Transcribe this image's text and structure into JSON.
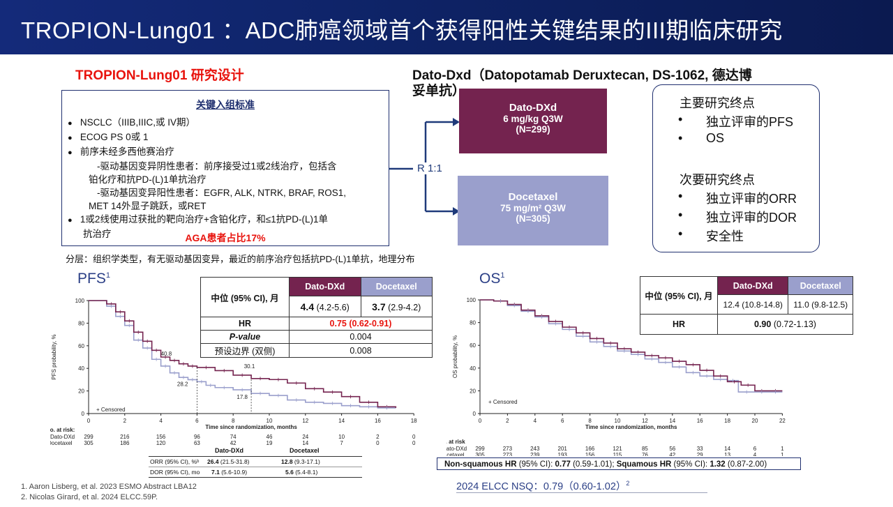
{
  "header": {
    "title": "TROPION-Lung01 ：ADC肺癌领域首个获得阳性关键结果的III期临床研究"
  },
  "design": {
    "title": "TROPION-Lung01 研究设计",
    "drug_title_line1": "Dato-Dxd（Datopotamab Deruxtecan, DS-1062, 德达博",
    "drug_title_line2": "妥单抗）",
    "criteria_header": "关键入组标准",
    "criteria": {
      "b1": "NSCLC（IIIB,IIIC,或 IV期）",
      "b2": "ECOG PS 0或 1",
      "b3": "前序未经多西他赛治疗",
      "b3_sub1a": "-驱动基因变异阴性患者：前序接受过1或2线治疗，包括含",
      "b3_sub1b": "铂化疗和抗PD-(L)1单抗治疗",
      "b3_sub2a": "-驱动基因变异阳性患者：EGFR, ALK, NTRK, BRAF, ROS1,",
      "b3_sub2b": "MET 14外显子跳跃，或RET",
      "b4a": "1或2线使用过获批的靶向治疗+含铂化疗，和≤1抗PD-(L)1单",
      "b4b": "抗治疗",
      "aga": "AGA患者占比17%"
    },
    "stratification": "分层：组织学类型，有无驱动基因变异，最近的前序治疗包括抗PD-(L)1单抗，地理分布",
    "randomization": "R 1:1",
    "arm1": {
      "name": "Dato-DXd",
      "dose": "6 mg/kg Q3W",
      "n": "(N=299)"
    },
    "arm2": {
      "name": "Docetaxel",
      "dose": "75 mg/m² Q3W",
      "n": "(N=305)"
    },
    "endpoints": {
      "primary_label": "主要研究终点",
      "primary": [
        "独立评审的PFS",
        "OS"
      ],
      "secondary_label": "次要研究终点",
      "secondary": [
        "独立评审的ORR",
        "独立评审的DOR",
        "安全性"
      ],
      "bullet": "•"
    }
  },
  "pfs": {
    "label": "PFS",
    "sup": "1",
    "table": {
      "row_header": "中位 (95% CI), 月",
      "col1": "Dato-DXd",
      "col2": "Docetaxel",
      "median1": "4.4",
      "ci1": "(4.2-5.6)",
      "median2": "3.7",
      "ci2": "(2.9-4.2)",
      "hr_label": "HR",
      "hr_value": "0.75 (0.62-0.91)",
      "p_label": "P-value",
      "p_value": "0.004",
      "margin_label": "预设边界 (双侧)",
      "margin_value": "0.008"
    },
    "chart": {
      "ylabel": "PFS probability, %",
      "xlabel": "Time since randomization, months",
      "yticks": [
        "0",
        "20",
        "40",
        "60",
        "80",
        "100"
      ],
      "xticks": [
        "0",
        "2",
        "4",
        "6",
        "8",
        "10",
        "12",
        "14",
        "16",
        "18"
      ],
      "censored": "+ Censored",
      "ann": [
        "40.8",
        "30.1",
        "28.2",
        "17.8"
      ]
    },
    "risk": {
      "title": "No. at risk:",
      "dato_label": "Dato-DXd",
      "doc_label": "Docetaxel",
      "dato": [
        "299",
        "216",
        "156",
        "96",
        "74",
        "46",
        "24",
        "10",
        "2",
        "0"
      ],
      "doc": [
        "305",
        "186",
        "120",
        "63",
        "42",
        "19",
        "14",
        "7",
        "0",
        "0"
      ]
    },
    "resp": {
      "h1": "Dato-DXd",
      "h2": "Docetaxel",
      "orr_label": "ORR (95% CI), %ᵇ",
      "orr1": "26.4",
      "orr1_ci": "(21.5-31.8)",
      "orr2": "12.8",
      "orr2_ci": "(9.3-17.1)",
      "dor_label": "DOR (95% CI), mo",
      "dor1": "7.1",
      "dor1_ci": "(5.6-10.9)",
      "dor2": "5.6",
      "dor2_ci": "(5.4-8.1)"
    }
  },
  "os": {
    "label": "OS",
    "sup": "1",
    "table": {
      "row_header": "中位 (95% CI), 月",
      "col1": "Dato-DXd",
      "col2": "Docetaxel",
      "v1": "12.4 (10.8-14.8)",
      "v2": "11.0 (9.8-12.5)",
      "hr_label": "HR",
      "hr_value": "0.90",
      "hr_ci": "(0.72-1.13)"
    },
    "chart": {
      "ylabel": "OS probability, %",
      "xlabel": "Time since randomization, months",
      "yticks": [
        "0",
        "20",
        "40",
        "60",
        "80",
        "100"
      ],
      "xticks": [
        "0",
        "2",
        "4",
        "6",
        "8",
        "10",
        "12",
        "14",
        "16",
        "18",
        "20",
        "22"
      ],
      "censored": "+ Censored"
    },
    "risk": {
      "title": "No. at risk",
      "dato_label": "Dato-DXd",
      "doc_label": "Docetaxel",
      "dato": [
        "299",
        "273",
        "243",
        "201",
        "166",
        "121",
        "85",
        "56",
        "33",
        "14",
        "6",
        "1"
      ],
      "doc": [
        "305",
        "273",
        "239",
        "193",
        "156",
        "115",
        "76",
        "42",
        "29",
        "13",
        "4",
        "1"
      ]
    },
    "subgroup": {
      "p1": "Non-squamous HR",
      "p1_ci_label": "(95% CI):",
      "p1_v": "0.77",
      "p1_ci": "(0.59-1.01);",
      "p2": "Squamous HR",
      "p2_ci_label": "(95% CI):",
      "p2_v": "1.32",
      "p2_ci": "(0.87-2.00)"
    },
    "elcc": "2024 ELCC NSQ：0.79（0.60-1.02）",
    "elcc_sup": "2"
  },
  "references": [
    "1.    Aaron Lisberg, et al. 2023 ESMO Abstract LBA12",
    "2.    Nicolas Girard, et al. 2024 ELCC.59P."
  ],
  "colors": {
    "dato": "#74234f",
    "doc": "#9a9fcc",
    "header": "#102468",
    "red": "#e8130d"
  }
}
